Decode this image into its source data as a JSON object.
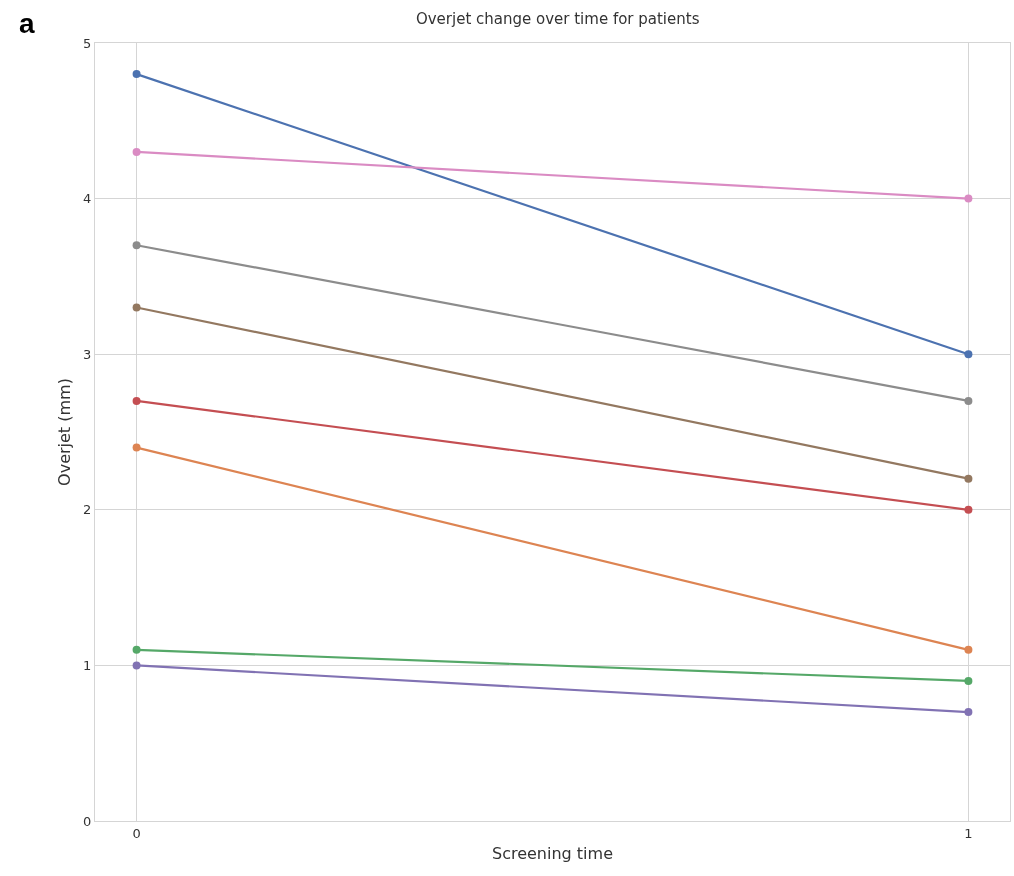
{
  "chart_data": {
    "type": "line",
    "title": "Overjet change over time for patients",
    "xlabel": "Screening time",
    "ylabel": "Overjet (mm)",
    "annotations": [
      "a"
    ],
    "x": [
      0,
      1
    ],
    "xlim": [
      -0.05,
      1.05
    ],
    "xticks": [
      0,
      1
    ],
    "ylim": [
      0,
      5
    ],
    "yticks": [
      0,
      1,
      2,
      3,
      4,
      5
    ],
    "grid": true,
    "marker": "circle",
    "line_style": "solid",
    "series": [
      {
        "color": "#4c72b0",
        "values": [
          4.8,
          3.0
        ]
      },
      {
        "color": "#dd8452",
        "values": [
          2.4,
          1.1
        ]
      },
      {
        "color": "#55a868",
        "values": [
          1.1,
          0.9
        ]
      },
      {
        "color": "#c44e52",
        "values": [
          2.7,
          2.0
        ]
      },
      {
        "color": "#8172b3",
        "values": [
          1.0,
          0.7
        ]
      },
      {
        "color": "#937860",
        "values": [
          3.3,
          2.2
        ]
      },
      {
        "color": "#da8bc3",
        "values": [
          4.3,
          4.0
        ]
      },
      {
        "color": "#8c8c8c",
        "values": [
          3.7,
          2.7
        ]
      }
    ]
  }
}
